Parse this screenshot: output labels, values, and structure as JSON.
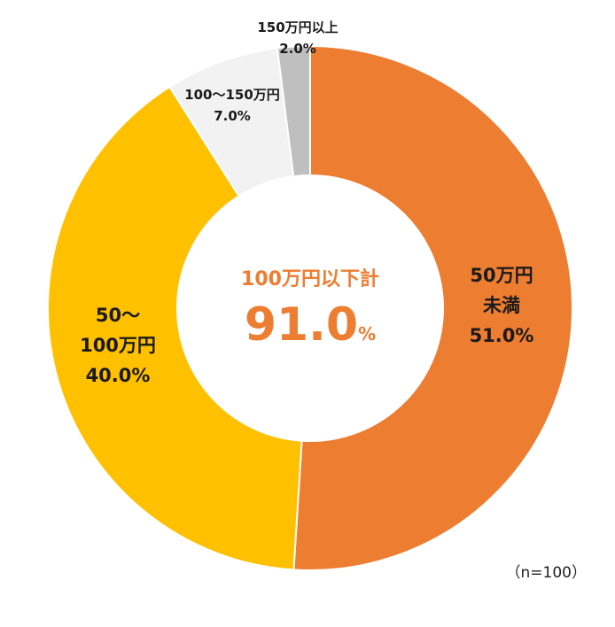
{
  "chart_data": {
    "type": "pie",
    "variant": "donut",
    "categories": [
      "50万円未満",
      "50～100万円",
      "100～150万円",
      "150万円以上"
    ],
    "values": [
      51.0,
      40.0,
      7.0,
      2.0
    ],
    "slice_labels": [
      [
        "50万円",
        "未満",
        "51.0%"
      ],
      [
        "50～",
        "100万円",
        "40.0%"
      ],
      [
        "100～150万円",
        "7.0%"
      ],
      [
        "150万円以上",
        "2.0%"
      ]
    ],
    "colors": [
      "#ed7d31",
      "#ffc000",
      "#f2f2f2",
      "#bfbfbf"
    ],
    "start_angle_deg": 0,
    "direction": "clockwise",
    "center": {
      "title": "100万円以下計",
      "value": "91.0",
      "unit": "%"
    },
    "note": "（n=100）"
  }
}
